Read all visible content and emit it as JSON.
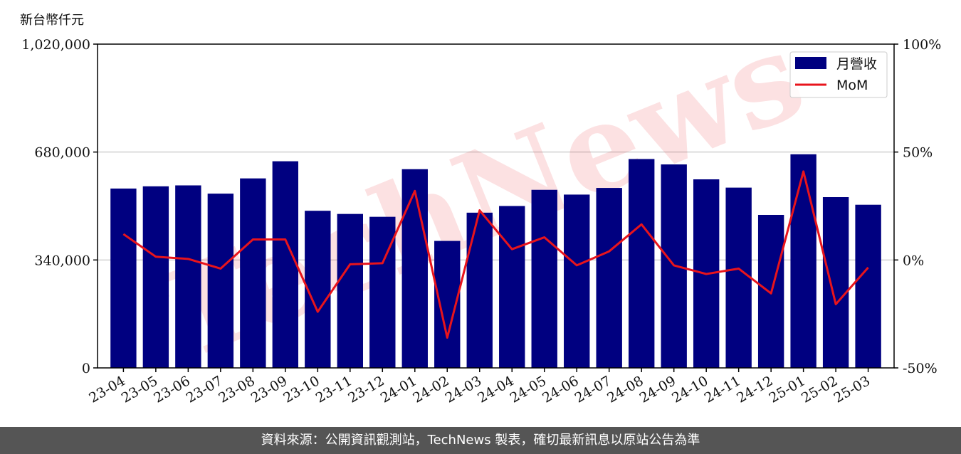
{
  "chart_data": {
    "type": "bar",
    "y_unit_label": "新台幣仟元",
    "categories": [
      "23-04",
      "23-05",
      "23-06",
      "23-07",
      "23-08",
      "23-09",
      "23-10",
      "23-11",
      "23-12",
      "24-01",
      "24-02",
      "24-03",
      "24-04",
      "24-05",
      "24-06",
      "24-07",
      "24-08",
      "24-09",
      "24-10",
      "24-11",
      "24-12",
      "25-01",
      "25-02",
      "25-03"
    ],
    "series": [
      {
        "name": "月營收",
        "type": "bar",
        "axis": "left",
        "color": "#000080",
        "values": [
          565000,
          572000,
          575000,
          549000,
          597000,
          651000,
          495000,
          485000,
          476000,
          626000,
          400000,
          489000,
          510000,
          561000,
          546000,
          567000,
          658000,
          641000,
          594000,
          568000,
          482000,
          673000,
          538000,
          514000
        ]
      },
      {
        "name": "MoM",
        "type": "line",
        "axis": "right",
        "color": "#e8141c",
        "values": [
          12,
          1.5,
          0.5,
          -4,
          9.5,
          9.5,
          -24,
          -2,
          -1.5,
          32,
          -36,
          23,
          5,
          10.5,
          -2.5,
          4,
          16.5,
          -2.5,
          -6.5,
          -4,
          -15.5,
          41,
          -20.5,
          -3.5
        ]
      }
    ],
    "y_left": {
      "min": 0,
      "max": 1020000,
      "ticks": [
        0,
        340000,
        680000,
        1020000
      ],
      "tick_labels": [
        "0",
        "340,000",
        "680,000",
        "1,020,000"
      ]
    },
    "y_right": {
      "min": -50,
      "max": 100,
      "ticks": [
        -50,
        0,
        50,
        100
      ],
      "tick_labels": [
        "-50%",
        "0%",
        "50%",
        "100%"
      ]
    },
    "grid": "horizontal",
    "legend_position": "top-right",
    "watermark": "TechNews"
  },
  "footer": {
    "text": "資料來源：公開資訊觀測站，TechNews 製表，確切最新訊息以原站公告為準"
  }
}
